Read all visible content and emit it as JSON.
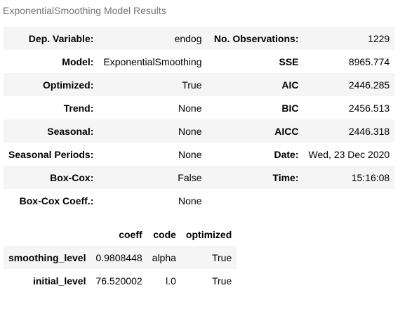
{
  "caption": "ExponentialSmoothing Model Results",
  "summary_rows": [
    {
      "label1": "Dep. Variable:",
      "value1": "endog",
      "label2": "No. Observations:",
      "value2": "1229"
    },
    {
      "label1": "Model:",
      "value1": "ExponentialSmoothing",
      "label2": "SSE",
      "value2": "8965.774"
    },
    {
      "label1": "Optimized:",
      "value1": "True",
      "label2": "AIC",
      "value2": "2446.285"
    },
    {
      "label1": "Trend:",
      "value1": "None",
      "label2": "BIC",
      "value2": "2456.513"
    },
    {
      "label1": "Seasonal:",
      "value1": "None",
      "label2": "AICC",
      "value2": "2446.318"
    },
    {
      "label1": "Seasonal Periods:",
      "value1": "None",
      "label2": "Date:",
      "value2": "Wed, 23 Dec 2020"
    },
    {
      "label1": "Box-Cox:",
      "value1": "False",
      "label2": "Time:",
      "value2": "15:16:08"
    },
    {
      "label1": "Box-Cox Coeff.:",
      "value1": "None",
      "label2": "",
      "value2": ""
    }
  ],
  "param_table": {
    "headers": [
      "",
      "coeff",
      "code",
      "optimized"
    ],
    "rows": [
      {
        "name": "smoothing_level",
        "coeff": "0.9808448",
        "code": "alpha",
        "optimized": "True"
      },
      {
        "name": "initial_level",
        "coeff": "76.520002",
        "code": "l.0",
        "optimized": "True"
      }
    ]
  }
}
